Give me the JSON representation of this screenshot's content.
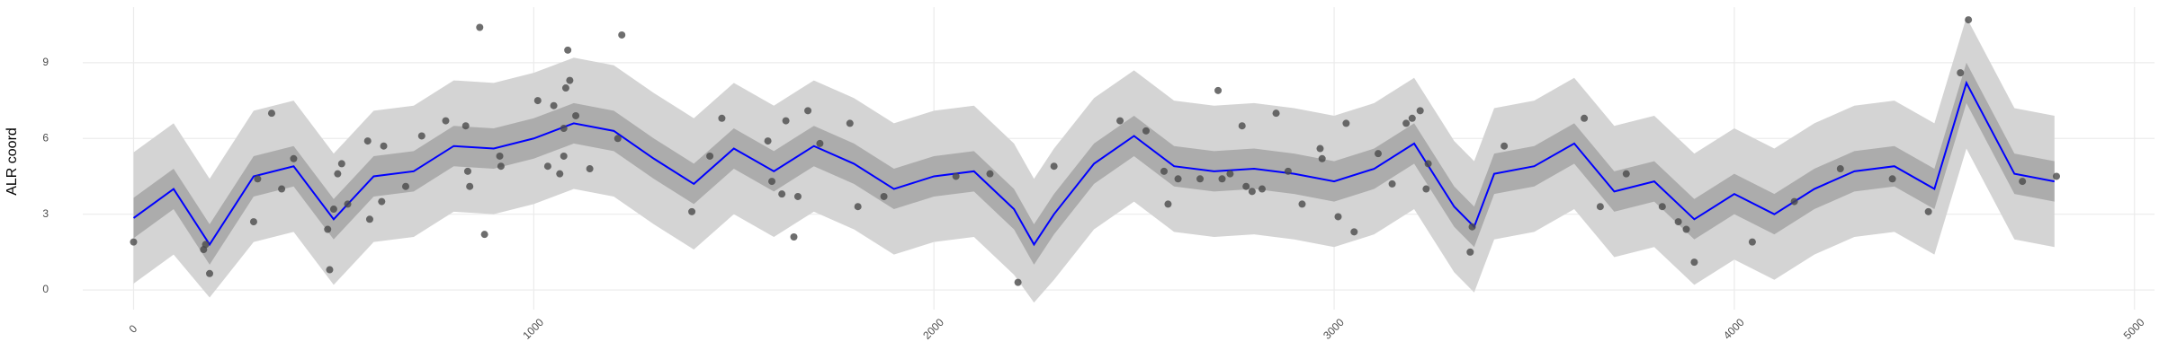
{
  "chart_data": {
    "type": "gp-fit",
    "y_label": "ALR coord",
    "xlim": [
      -127,
      5050
    ],
    "ylim": [
      -0.78,
      11.2
    ],
    "xticks": [
      0,
      1000,
      2000,
      3000,
      4000,
      5000
    ],
    "yticks": [
      0,
      3,
      6,
      9
    ],
    "grid": true,
    "x": [
      0,
      100,
      190,
      300,
      400,
      500,
      600,
      700,
      800,
      900,
      1000,
      1100,
      1200,
      1300,
      1400,
      1500,
      1600,
      1700,
      1800,
      1900,
      2000,
      2100,
      2200,
      2250,
      2300,
      2400,
      2500,
      2600,
      2700,
      2800,
      2900,
      3000,
      3100,
      3200,
      3300,
      3350,
      3400,
      3500,
      3600,
      3700,
      3800,
      3900,
      4000,
      4100,
      4200,
      4300,
      4400,
      4500,
      4580,
      4700,
      4800
    ],
    "bands": [
      {
        "color": "#d4d4d4",
        "lower": [
          0.25,
          1.4,
          -0.3,
          1.9,
          2.3,
          0.2,
          1.9,
          2.1,
          3.1,
          3.0,
          3.4,
          4.0,
          3.7,
          2.6,
          1.6,
          3.0,
          2.1,
          3.1,
          2.4,
          1.4,
          1.9,
          2.1,
          0.6,
          -0.5,
          0.4,
          2.4,
          3.5,
          2.3,
          2.1,
          2.2,
          2.0,
          1.7,
          2.2,
          3.2,
          0.7,
          -0.1,
          2.0,
          2.3,
          3.2,
          1.3,
          1.7,
          0.2,
          1.2,
          0.4,
          1.4,
          2.1,
          2.3,
          1.4,
          5.6,
          2.0,
          1.7
        ],
        "upper": [
          5.45,
          6.6,
          4.4,
          7.1,
          7.5,
          5.4,
          7.1,
          7.3,
          8.3,
          8.2,
          8.6,
          9.2,
          8.9,
          7.8,
          6.8,
          8.2,
          7.3,
          8.3,
          7.6,
          6.6,
          7.1,
          7.3,
          5.8,
          4.4,
          5.6,
          7.6,
          8.7,
          7.5,
          7.3,
          7.4,
          7.2,
          6.9,
          7.4,
          8.4,
          5.9,
          5.1,
          7.2,
          7.5,
          8.4,
          6.5,
          6.9,
          5.4,
          6.4,
          5.6,
          6.6,
          7.3,
          7.5,
          6.6,
          10.8,
          7.2,
          6.9
        ]
      },
      {
        "color": "#acacac",
        "lower": [
          2.05,
          3.2,
          1.0,
          3.7,
          4.1,
          2.0,
          3.7,
          3.9,
          4.9,
          4.8,
          5.2,
          5.8,
          5.5,
          4.4,
          3.4,
          4.8,
          3.9,
          4.9,
          4.2,
          3.2,
          3.7,
          3.9,
          2.4,
          1.0,
          2.2,
          4.2,
          5.3,
          4.1,
          3.9,
          4.0,
          3.8,
          3.5,
          4.0,
          5.0,
          2.5,
          1.7,
          3.8,
          4.1,
          5.0,
          3.1,
          3.5,
          2.0,
          3.0,
          2.2,
          3.2,
          3.9,
          4.1,
          3.2,
          7.4,
          3.8,
          3.5
        ],
        "upper": [
          3.65,
          4.8,
          2.6,
          5.3,
          5.7,
          3.6,
          5.3,
          5.5,
          6.5,
          6.4,
          6.8,
          7.4,
          7.1,
          6.0,
          5.0,
          6.4,
          5.5,
          6.5,
          5.8,
          4.8,
          5.3,
          5.5,
          4.0,
          2.6,
          3.8,
          5.8,
          6.9,
          5.7,
          5.5,
          5.6,
          5.4,
          5.1,
          5.6,
          6.6,
          4.1,
          3.3,
          5.4,
          5.7,
          6.6,
          4.7,
          5.1,
          3.6,
          4.6,
          3.8,
          4.8,
          5.5,
          5.7,
          4.8,
          9.0,
          5.4,
          5.1
        ]
      }
    ],
    "line": {
      "color": "#0000ff",
      "values": [
        2.85,
        4.0,
        1.8,
        4.5,
        4.9,
        2.8,
        4.5,
        4.7,
        5.7,
        5.6,
        6.0,
        6.6,
        6.3,
        5.2,
        4.2,
        5.6,
        4.7,
        5.7,
        5.0,
        4.0,
        4.5,
        4.7,
        3.2,
        1.8,
        3.0,
        5.0,
        6.1,
        4.9,
        4.7,
        4.8,
        4.6,
        4.3,
        4.8,
        5.8,
        3.3,
        2.5,
        4.6,
        4.9,
        5.8,
        3.9,
        4.3,
        2.8,
        3.8,
        3.0,
        4.0,
        4.7,
        4.9,
        4.0,
        8.2,
        4.6,
        4.3
      ]
    },
    "points": {
      "color": "#4a4a4a",
      "x": [
        0,
        175,
        180,
        190,
        300,
        310,
        345,
        370,
        400,
        485,
        490,
        500,
        510,
        520,
        535,
        585,
        590,
        620,
        625,
        680,
        720,
        780,
        830,
        835,
        840,
        865,
        877,
        915,
        918,
        1010,
        1035,
        1050,
        1065,
        1075,
        1075,
        1080,
        1085,
        1090,
        1105,
        1140,
        1210,
        1220,
        1395,
        1440,
        1470,
        1585,
        1595,
        1620,
        1630,
        1650,
        1660,
        1685,
        1715,
        1790,
        1810,
        1875,
        2055,
        2140,
        2210,
        2300,
        2465,
        2530,
        2575,
        2585,
        2610,
        2665,
        2710,
        2720,
        2740,
        2770,
        2780,
        2795,
        2820,
        2855,
        2885,
        2920,
        2965,
        2970,
        3010,
        3030,
        3050,
        3110,
        3145,
        3180,
        3195,
        3215,
        3230,
        3235,
        3340,
        3345,
        3425,
        3625,
        3665,
        3730,
        3820,
        3860,
        3880,
        3900,
        4045,
        4150,
        4265,
        4395,
        4485,
        4565,
        4585,
        4720,
        4805
      ],
      "y": [
        1.9,
        1.6,
        1.8,
        0.65,
        2.7,
        4.4,
        7.0,
        4.0,
        5.2,
        2.4,
        0.8,
        3.2,
        4.6,
        5.0,
        3.4,
        5.9,
        2.8,
        3.5,
        5.7,
        4.1,
        6.1,
        6.7,
        6.5,
        4.7,
        4.1,
        10.4,
        2.2,
        5.3,
        4.9,
        7.5,
        4.9,
        7.3,
        4.6,
        5.3,
        6.4,
        8.0,
        9.5,
        8.3,
        6.9,
        4.8,
        6.0,
        10.1,
        3.1,
        5.3,
        6.8,
        5.9,
        4.3,
        3.8,
        6.7,
        2.1,
        3.7,
        7.1,
        5.8,
        6.6,
        3.3,
        3.7,
        4.5,
        4.6,
        0.3,
        4.9,
        6.7,
        6.3,
        4.7,
        3.4,
        4.4,
        4.4,
        7.9,
        4.4,
        4.6,
        6.5,
        4.1,
        3.9,
        4.0,
        7.0,
        4.7,
        3.4,
        5.6,
        5.2,
        2.9,
        6.6,
        2.3,
        5.4,
        4.2,
        6.6,
        6.8,
        7.1,
        4.0,
        5.0,
        1.5,
        2.5,
        5.7,
        6.8,
        3.3,
        4.6,
        3.3,
        2.7,
        2.4,
        1.1,
        1.9,
        3.5,
        4.8,
        4.4,
        3.1,
        8.6,
        10.7,
        4.3,
        4.5
      ]
    }
  }
}
